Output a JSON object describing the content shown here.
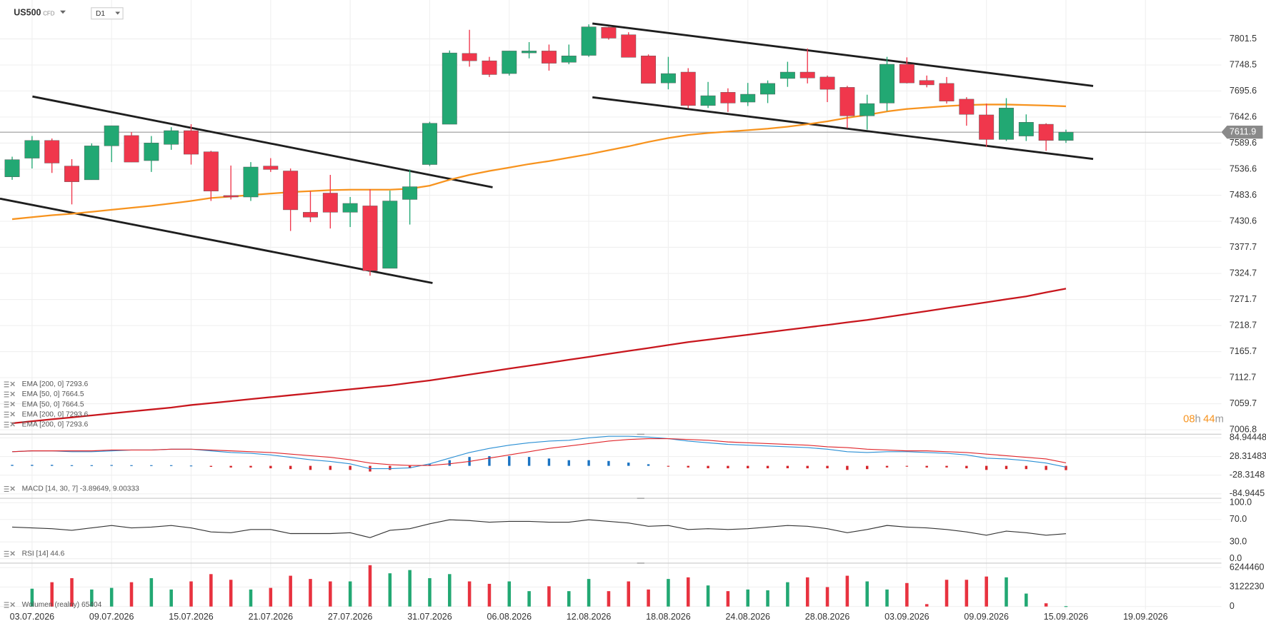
{
  "chart_data": [
    {
      "type": "candlestick",
      "symbol": "US500",
      "instrument": "CFD",
      "timeframe": "D1",
      "categories": [
        null,
        "03.07.2026",
        null,
        null,
        null,
        "09.07.2026",
        null,
        null,
        null,
        "15.07.2026",
        null,
        null,
        null,
        "21.07.2026",
        null,
        null,
        null,
        "27.07.2026",
        null,
        null,
        null,
        "31.07.2026",
        null,
        null,
        null,
        "06.08.2026",
        null,
        null,
        null,
        "12.08.2026",
        null,
        null,
        null,
        "18.08.2026",
        null,
        null,
        null,
        "24.08.2026",
        null,
        null,
        null,
        "28.08.2026",
        null,
        null,
        null,
        "03.09.2026",
        null,
        null,
        null,
        "09.09.2026",
        null,
        null,
        null,
        "15.09.2026",
        null,
        null,
        null,
        "19.09.2026"
      ],
      "open": [
        7521,
        7559,
        7595,
        7543,
        7515,
        7584,
        7605,
        7554,
        7587,
        7615,
        7572,
        7483,
        7480,
        7543,
        7533,
        7449,
        7488,
        7449,
        7462,
        7335,
        7475,
        7546,
        7628,
        7772,
        7757,
        7731,
        7773,
        7777,
        7754,
        7768,
        7825,
        7810,
        7767,
        7712,
        7734,
        7666,
        7693,
        7673,
        7689,
        7721,
        7734,
        7724,
        7703,
        7645,
        7671,
        7750,
        7717,
        7711,
        7679,
        7647,
        7597,
        7604,
        7628,
        7595,
        null,
        null,
        null,
        null
      ],
      "high": [
        7562,
        7604,
        7599,
        7557,
        7589,
        7625,
        7612,
        7604,
        7622,
        7628,
        7574,
        7544,
        7551,
        7559,
        7538,
        7492,
        7525,
        7480,
        7496,
        7493,
        7536,
        7633,
        7778,
        7820,
        7765,
        7777,
        7795,
        7790,
        7790,
        7831,
        7826,
        7815,
        7770,
        7765,
        7742,
        7714,
        7701,
        7712,
        7717,
        7755,
        7782,
        7727,
        7706,
        7688,
        7765,
        7764,
        7727,
        7724,
        7683,
        7670,
        7681,
        7648,
        7630,
        7617,
        null,
        null,
        null,
        null
      ],
      "low": [
        7515,
        7538,
        7529,
        7465,
        7515,
        7551,
        7551,
        7531,
        7576,
        7546,
        7472,
        7475,
        7472,
        7531,
        7411,
        7429,
        7416,
        7419,
        7320,
        7335,
        7424,
        7543,
        7628,
        7745,
        7724,
        7727,
        7762,
        7737,
        7750,
        7765,
        7800,
        7764,
        7711,
        7699,
        7661,
        7661,
        7653,
        7665,
        7671,
        7704,
        7711,
        7673,
        7620,
        7617,
        7655,
        7711,
        7703,
        7670,
        7625,
        7582,
        7594,
        7594,
        7574,
        7590,
        null,
        null,
        null,
        null
      ],
      "close": [
        7556,
        7595,
        7549,
        7511,
        7584,
        7625,
        7551,
        7590,
        7615,
        7567,
        7492,
        7480,
        7541,
        7536,
        7454,
        7439,
        7449,
        7467,
        7330,
        7472,
        7501,
        7630,
        7773,
        7757,
        7729,
        7777,
        7777,
        7752,
        7767,
        7826,
        7803,
        7764,
        7711,
        7731,
        7666,
        7686,
        7671,
        7689,
        7711,
        7734,
        7722,
        7699,
        7645,
        7670,
        7750,
        7712,
        7708,
        7675,
        7648,
        7597,
        7661,
        7632,
        7595,
        7611.9,
        null,
        null,
        null,
        null
      ],
      "up_color": "#22a873",
      "down_color": "#f0374c",
      "overlays": [
        {
          "color": "#f7931e",
          "values": [
            7435,
            7439,
            7443,
            7446,
            7450,
            7454,
            7458,
            7462,
            7467,
            7472,
            7478,
            7481,
            7484,
            7487,
            7490,
            7492,
            7494,
            7495,
            7495,
            7495,
            7497,
            7503,
            7515,
            7525,
            7533,
            7540,
            7547,
            7553,
            7560,
            7567,
            7575,
            7583,
            7592,
            7600,
            7606,
            7610,
            7613,
            7616,
            7619,
            7623,
            7628,
            7634,
            7641,
            7647,
            7654,
            7659,
            7662,
            7665,
            7667,
            7668,
            7668,
            7667,
            7666,
            7664.5,
            null,
            null,
            null,
            null
          ]
        },
        {
          "color": "#c8161d",
          "values": [
            7020,
            7024,
            7028,
            7032,
            7036,
            7040,
            7044,
            7048,
            7052,
            7057,
            7061,
            7065,
            7069,
            7073,
            7077,
            7081,
            7085,
            7089,
            7093,
            7097,
            7102,
            7107,
            7113,
            7119,
            7125,
            7131,
            7137,
            7143,
            7149,
            7155,
            7161,
            7167,
            7173,
            7179,
            7185,
            7190,
            7195,
            7200,
            7205,
            7210,
            7215,
            7220,
            7225,
            7230,
            7236,
            7242,
            7248,
            7254,
            7260,
            7266,
            7272,
            7278,
            7286,
            7293.6,
            null,
            null,
            null,
            null
          ]
        }
      ],
      "legend": [
        "EMA [200, 0] 7293.6",
        "EMA [50, 0] 7664.5",
        "EMA [50, 0] 7664.5",
        "EMA [200, 0] 7293.6",
        "EMA [200, 0] 7293.6"
      ],
      "ylim": [
        6998.5,
        7880.6
      ],
      "yticks": [
        7006.8,
        7059.7,
        7112.7,
        7165.7,
        7218.7,
        7271.7,
        7324.7,
        7377.7,
        7430.6,
        7483.6,
        7536.6,
        7589.6,
        7642.6,
        7695.6,
        7748.5,
        7801.5
      ],
      "grid": true,
      "countdown": [
        "08",
        "h",
        "44",
        "m"
      ]
    },
    {
      "type": "macd",
      "legend": "MACD [14, 30, 7] -3.89649, 9.00333",
      "series": [
        {
          "color": "#2a8fd4",
          "values": [
            43.1,
            45.6,
            45.6,
            43.1,
            43.1,
            45.6,
            48.0,
            48.0,
            50.5,
            50.5,
            45.6,
            40.6,
            38.2,
            33.2,
            25.9,
            18.5,
            13.6,
            6.2,
            -8.6,
            -8.6,
            -6.2,
            6.2,
            23.4,
            40.6,
            52.9,
            62.8,
            70.2,
            75.1,
            77.5,
            84.9,
            89.9,
            89.9,
            87.4,
            82.5,
            75.1,
            70.2,
            65.2,
            62.8,
            60.3,
            57.9,
            55.4,
            50.5,
            43.1,
            40.6,
            43.1,
            43.1,
            40.6,
            38.2,
            33.2,
            23.4,
            21.0,
            16.0,
            8.6,
            -3.89649,
            null,
            null,
            null,
            null
          ]
        },
        {
          "color": "#e0262b",
          "values": [
            43.1,
            45.6,
            45.6,
            45.6,
            45.6,
            48.0,
            48.0,
            48.0,
            50.5,
            50.5,
            48.0,
            45.6,
            43.1,
            40.6,
            35.7,
            30.8,
            25.9,
            18.5,
            8.6,
            3.7,
            1.2,
            1.2,
            6.2,
            13.6,
            23.4,
            33.2,
            43.1,
            52.9,
            60.3,
            67.7,
            75.1,
            80.0,
            82.5,
            82.5,
            80.0,
            77.5,
            72.6,
            70.2,
            67.7,
            65.2,
            62.8,
            57.9,
            55.4,
            50.5,
            48.0,
            45.6,
            45.6,
            43.1,
            40.6,
            35.7,
            30.8,
            25.9,
            21.0,
            9.00333,
            null,
            null,
            null,
            null
          ]
        }
      ],
      "histogram": {
        "up_color": "#1a73c2",
        "down_color": "#d7262b",
        "values": [
          3,
          3,
          3,
          2,
          2,
          2.5,
          2,
          2,
          2,
          1,
          -3,
          -5,
          -4.9,
          -7.4,
          -9.8,
          -12.3,
          -12.3,
          -12.3,
          -17.2,
          -12.3,
          -7.4,
          5,
          17.2,
          27,
          29.5,
          29.6,
          27.1,
          22.2,
          17.2,
          17.2,
          14.8,
          9.9,
          4.9,
          -2,
          -4.9,
          -7.3,
          -7.4,
          -7.4,
          -7.4,
          -7.3,
          -7.4,
          -7.4,
          -12.3,
          -9.9,
          -4.9,
          -2.5,
          -5,
          -4.9,
          -7.4,
          -12.3,
          -9.8,
          -9.9,
          -12.4,
          -12.9,
          null,
          null,
          null,
          null
        ]
      },
      "ylim": [
        -97.2,
        92.3
      ],
      "yticks": [
        -84.9445,
        -28.3148,
        28.31483,
        84.94448
      ]
    },
    {
      "type": "line",
      "legend": "RSI [14] 44.6",
      "color": "#333333",
      "values": [
        56.5,
        55.1,
        53.6,
        50.7,
        55.1,
        59.4,
        55.1,
        56.5,
        59.4,
        55.1,
        47.8,
        46.4,
        52.2,
        52.2,
        44.9,
        44.9,
        44.9,
        46.4,
        37.7,
        50.7,
        53.6,
        62.3,
        69.6,
        68.1,
        65.2,
        66.7,
        66.7,
        65.2,
        65.2,
        69.6,
        66.7,
        63.8,
        58.0,
        59.4,
        52.2,
        53.6,
        52.2,
        53.6,
        56.5,
        59.4,
        58.0,
        53.6,
        46.4,
        52.2,
        59.4,
        56.5,
        55.1,
        52.2,
        47.8,
        42.0,
        49.3,
        46.4,
        42.0,
        44.6,
        null,
        null,
        null,
        null
      ],
      "ylim": [
        -8.7,
        108.7
      ],
      "yticks": [
        {
          "value": 0,
          "label": "0.0"
        },
        {
          "value": 30,
          "label": "30.0"
        },
        {
          "value": 70,
          "label": "70.0"
        },
        {
          "value": 100,
          "label": "100.0"
        }
      ]
    },
    {
      "type": "bar",
      "legend": "Wolumen (realny) 65404",
      "up_color": "#22a873",
      "down_color": "#e8323f",
      "values": [
        null,
        2860000,
        3900000,
        4550000,
        2730000,
        2990000,
        3900000,
        4550000,
        2730000,
        4030000,
        5200000,
        4290000,
        2730000,
        2990000,
        4940000,
        4420000,
        4030000,
        4030000,
        6630000,
        5330000,
        5850000,
        4550000,
        5200000,
        4030000,
        3640000,
        4030000,
        2470000,
        3250000,
        2470000,
        4420000,
        2470000,
        4030000,
        2730000,
        4420000,
        4680000,
        3380000,
        2470000,
        2730000,
        2600000,
        3900000,
        4680000,
        3120000,
        4940000,
        4030000,
        2730000,
        3770000,
        390000,
        4290000,
        4290000,
        4810000,
        4680000,
        2080000,
        520000,
        65404,
        null,
        null,
        null,
        null
      ],
      "ylim": [
        -520000,
        6630000
      ],
      "yticks": [
        0,
        3122230,
        6244460
      ]
    }
  ]
}
